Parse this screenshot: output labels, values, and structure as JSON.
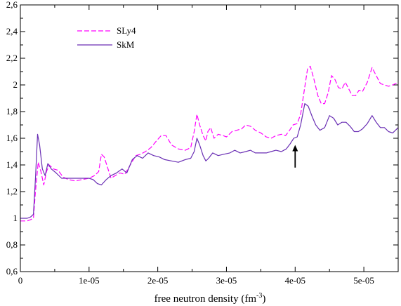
{
  "chart_data": {
    "type": "line",
    "xlabel_main": "free neutron density (fm",
    "xlabel_sup": "-3",
    "xlabel_end": ")",
    "ylabel": "",
    "xlim": [
      0,
      5.5e-05
    ],
    "ylim": [
      0.6,
      2.6
    ],
    "x_ticks": [
      {
        "value": 0,
        "label": "0"
      },
      {
        "value": 1e-05,
        "label": "1e-05"
      },
      {
        "value": 2e-05,
        "label": "2e-05"
      },
      {
        "value": 3e-05,
        "label": "3e-05"
      },
      {
        "value": 4e-05,
        "label": "4e-05"
      },
      {
        "value": 5e-05,
        "label": "5e-05"
      }
    ],
    "y_ticks": [
      {
        "value": 0.6,
        "label": "0,6"
      },
      {
        "value": 0.8,
        "label": "0,8"
      },
      {
        "value": 1.0,
        "label": "1"
      },
      {
        "value": 1.2,
        "label": "1,2"
      },
      {
        "value": 1.4,
        "label": "1,4"
      },
      {
        "value": 1.6,
        "label": "1,6"
      },
      {
        "value": 1.8,
        "label": "1,8"
      },
      {
        "value": 2.0,
        "label": "2"
      },
      {
        "value": 2.2,
        "label": "2,2"
      },
      {
        "value": 2.4,
        "label": "2,4"
      },
      {
        "value": 2.6,
        "label": "2,6"
      }
    ],
    "grid": false,
    "legend": "top-left",
    "series": [
      {
        "name": "SLy4",
        "color": "#ff00ff",
        "style": "dashed",
        "points": [
          [
            0,
            0.98
          ],
          [
            1e-06,
            0.98
          ],
          [
            1.5e-06,
            0.99
          ],
          [
            1.9e-06,
            1.0
          ],
          [
            2.2e-06,
            1.2
          ],
          [
            2.6e-06,
            1.42
          ],
          [
            3e-06,
            1.35
          ],
          [
            3.4e-06,
            1.25
          ],
          [
            3.8e-06,
            1.35
          ],
          [
            4.2e-06,
            1.4
          ],
          [
            4.8e-06,
            1.37
          ],
          [
            5.5e-06,
            1.36
          ],
          [
            6.2e-06,
            1.31
          ],
          [
            7e-06,
            1.29
          ],
          [
            8e-06,
            1.28
          ],
          [
            9e-06,
            1.29
          ],
          [
            1e-05,
            1.3
          ],
          [
            1.08e-05,
            1.32
          ],
          [
            1.14e-05,
            1.35
          ],
          [
            1.18e-05,
            1.48
          ],
          [
            1.22e-05,
            1.46
          ],
          [
            1.27e-05,
            1.38
          ],
          [
            1.32e-05,
            1.3
          ],
          [
            1.38e-05,
            1.32
          ],
          [
            1.45e-05,
            1.34
          ],
          [
            1.52e-05,
            1.33
          ],
          [
            1.6e-05,
            1.4
          ],
          [
            1.68e-05,
            1.47
          ],
          [
            1.75e-05,
            1.48
          ],
          [
            1.82e-05,
            1.5
          ],
          [
            1.9e-05,
            1.53
          ],
          [
            1.98e-05,
            1.58
          ],
          [
            2.05e-05,
            1.62
          ],
          [
            2.12e-05,
            1.62
          ],
          [
            2.2e-05,
            1.55
          ],
          [
            2.3e-05,
            1.52
          ],
          [
            2.4e-05,
            1.51
          ],
          [
            2.48e-05,
            1.53
          ],
          [
            2.53e-05,
            1.65
          ],
          [
            2.57e-05,
            1.78
          ],
          [
            2.61e-05,
            1.7
          ],
          [
            2.66e-05,
            1.62
          ],
          [
            2.7e-05,
            1.58
          ],
          [
            2.73e-05,
            1.65
          ],
          [
            2.77e-05,
            1.68
          ],
          [
            2.82e-05,
            1.6
          ],
          [
            2.88e-05,
            1.63
          ],
          [
            2.95e-05,
            1.62
          ],
          [
            3e-05,
            1.61
          ],
          [
            3.08e-05,
            1.65
          ],
          [
            3.15e-05,
            1.66
          ],
          [
            3.22e-05,
            1.67
          ],
          [
            3.28e-05,
            1.7
          ],
          [
            3.35e-05,
            1.69
          ],
          [
            3.42e-05,
            1.66
          ],
          [
            3.5e-05,
            1.64
          ],
          [
            3.58e-05,
            1.61
          ],
          [
            3.65e-05,
            1.6
          ],
          [
            3.72e-05,
            1.62
          ],
          [
            3.8e-05,
            1.63
          ],
          [
            3.86e-05,
            1.62
          ],
          [
            3.92e-05,
            1.66
          ],
          [
            3.97e-05,
            1.7
          ],
          [
            4.03e-05,
            1.71
          ],
          [
            4.08e-05,
            1.78
          ],
          [
            4.13e-05,
            1.95
          ],
          [
            4.18e-05,
            2.12
          ],
          [
            4.22e-05,
            2.14
          ],
          [
            4.27e-05,
            2.05
          ],
          [
            4.33e-05,
            1.92
          ],
          [
            4.38e-05,
            1.86
          ],
          [
            4.43e-05,
            1.86
          ],
          [
            4.48e-05,
            1.94
          ],
          [
            4.53e-05,
            2.07
          ],
          [
            4.58e-05,
            2.04
          ],
          [
            4.63e-05,
            1.98
          ],
          [
            4.68e-05,
            1.97
          ],
          [
            4.73e-05,
            2.02
          ],
          [
            4.78e-05,
            1.97
          ],
          [
            4.83e-05,
            1.92
          ],
          [
            4.88e-05,
            1.92
          ],
          [
            4.93e-05,
            1.96
          ],
          [
            4.98e-05,
            1.95
          ],
          [
            5.05e-05,
            2.02
          ],
          [
            5.12e-05,
            2.13
          ],
          [
            5.18e-05,
            2.07
          ],
          [
            5.24e-05,
            2.01
          ],
          [
            5.3e-05,
            2.0
          ],
          [
            5.36e-05,
            1.99
          ],
          [
            5.42e-05,
            2.0
          ],
          [
            5.5e-05,
            2.02
          ]
        ]
      },
      {
        "name": "SkM",
        "color": "#6a2fb4",
        "style": "solid",
        "points": [
          [
            0,
            1.0
          ],
          [
            1e-06,
            1.0
          ],
          [
            1.5e-06,
            1.01
          ],
          [
            1.9e-06,
            1.03
          ],
          [
            2.2e-06,
            1.3
          ],
          [
            2.5e-06,
            1.63
          ],
          [
            2.8e-06,
            1.55
          ],
          [
            3.2e-06,
            1.37
          ],
          [
            3.6e-06,
            1.32
          ],
          [
            4e-06,
            1.41
          ],
          [
            4.5e-06,
            1.37
          ],
          [
            5.2e-06,
            1.34
          ],
          [
            6e-06,
            1.3
          ],
          [
            7e-06,
            1.3
          ],
          [
            8e-06,
            1.3
          ],
          [
            9e-06,
            1.3
          ],
          [
            1e-05,
            1.3
          ],
          [
            1.06e-05,
            1.29
          ],
          [
            1.12e-05,
            1.26
          ],
          [
            1.18e-05,
            1.25
          ],
          [
            1.25e-05,
            1.29
          ],
          [
            1.32e-05,
            1.32
          ],
          [
            1.4e-05,
            1.34
          ],
          [
            1.48e-05,
            1.37
          ],
          [
            1.55e-05,
            1.34
          ],
          [
            1.63e-05,
            1.44
          ],
          [
            1.7e-05,
            1.47
          ],
          [
            1.78e-05,
            1.45
          ],
          [
            1.86e-05,
            1.49
          ],
          [
            1.94e-05,
            1.47
          ],
          [
            2.02e-05,
            1.46
          ],
          [
            2.1e-05,
            1.44
          ],
          [
            2.2e-05,
            1.43
          ],
          [
            2.3e-05,
            1.42
          ],
          [
            2.4e-05,
            1.44
          ],
          [
            2.48e-05,
            1.45
          ],
          [
            2.53e-05,
            1.5
          ],
          [
            2.57e-05,
            1.6
          ],
          [
            2.61e-05,
            1.55
          ],
          [
            2.66e-05,
            1.47
          ],
          [
            2.7e-05,
            1.43
          ],
          [
            2.74e-05,
            1.45
          ],
          [
            2.8e-05,
            1.49
          ],
          [
            2.88e-05,
            1.47
          ],
          [
            2.96e-05,
            1.48
          ],
          [
            3.05e-05,
            1.49
          ],
          [
            3.12e-05,
            1.51
          ],
          [
            3.2e-05,
            1.49
          ],
          [
            3.28e-05,
            1.5
          ],
          [
            3.35e-05,
            1.51
          ],
          [
            3.42e-05,
            1.49
          ],
          [
            3.5e-05,
            1.49
          ],
          [
            3.58e-05,
            1.49
          ],
          [
            3.65e-05,
            1.5
          ],
          [
            3.72e-05,
            1.51
          ],
          [
            3.8e-05,
            1.5
          ],
          [
            3.87e-05,
            1.52
          ],
          [
            3.93e-05,
            1.56
          ],
          [
            3.98e-05,
            1.6
          ],
          [
            4.03e-05,
            1.61
          ],
          [
            4.08e-05,
            1.7
          ],
          [
            4.14e-05,
            1.86
          ],
          [
            4.19e-05,
            1.84
          ],
          [
            4.25e-05,
            1.76
          ],
          [
            4.3e-05,
            1.7
          ],
          [
            4.36e-05,
            1.66
          ],
          [
            4.43e-05,
            1.68
          ],
          [
            4.5e-05,
            1.77
          ],
          [
            4.56e-05,
            1.75
          ],
          [
            4.62e-05,
            1.7
          ],
          [
            4.68e-05,
            1.72
          ],
          [
            4.74e-05,
            1.72
          ],
          [
            4.8e-05,
            1.69
          ],
          [
            4.86e-05,
            1.65
          ],
          [
            4.92e-05,
            1.65
          ],
          [
            4.98e-05,
            1.67
          ],
          [
            5.05e-05,
            1.71
          ],
          [
            5.12e-05,
            1.77
          ],
          [
            5.18e-05,
            1.72
          ],
          [
            5.24e-05,
            1.68
          ],
          [
            5.3e-05,
            1.68
          ],
          [
            5.36e-05,
            1.65
          ],
          [
            5.42e-05,
            1.64
          ],
          [
            5.5e-05,
            1.68
          ]
        ]
      }
    ],
    "annotations": [
      {
        "type": "arrow",
        "x": 4e-05,
        "y_from": 1.38,
        "y_to": 1.55
      }
    ]
  }
}
